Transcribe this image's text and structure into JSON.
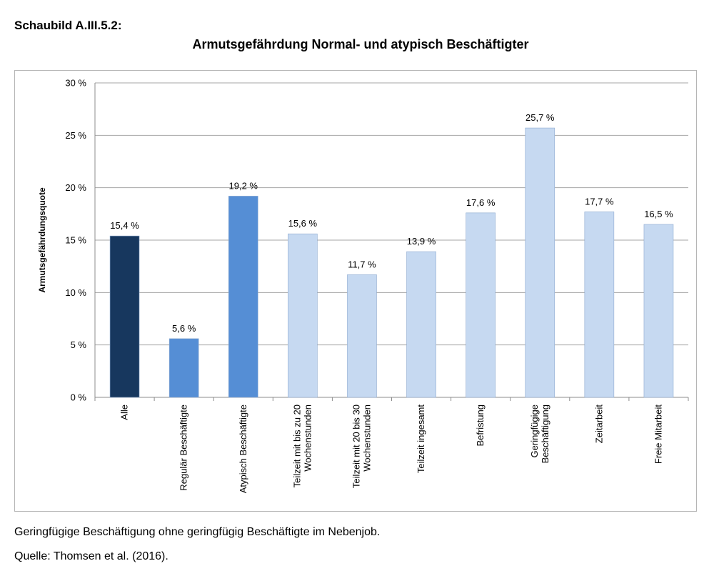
{
  "figure_label": "Schaubild A.III.5.2:",
  "footnote": "Geringfügige Beschäftigung ohne geringfügig Beschäftigte im Nebenjob.",
  "source": "Quelle: Thomsen et al. (2016).",
  "colors": {
    "dark": "#17375e",
    "medium": "#558ed5",
    "light": "#c6d9f1",
    "gridline": "#a6a6a6"
  },
  "chart_data": {
    "type": "bar",
    "title": "Armutsgefährdung Normal- und atypisch Beschäftigter",
    "xlabel": "",
    "ylabel": "Armutsgefährdungsquote",
    "ylim": [
      0,
      30
    ],
    "yticks": [
      0,
      5,
      10,
      15,
      20,
      25,
      30
    ],
    "ytick_labels": [
      "0 %",
      "5 %",
      "10 %",
      "15 %",
      "20 %",
      "25 %",
      "30 %"
    ],
    "grid": true,
    "categories": [
      [
        "Alle"
      ],
      [
        "Regulär Beschäftigte"
      ],
      [
        "Atypisch Beschäftigte"
      ],
      [
        "Teilzeit mit bis zu 20",
        "Wochenstunden"
      ],
      [
        "Teilzeit mit 20 bis 30",
        "Wochenstunden"
      ],
      [
        "Teilzeit ingesamt"
      ],
      [
        "Befristung"
      ],
      [
        "Geringfügige",
        "Beschäftigung"
      ],
      [
        "Zeitarbeit"
      ],
      [
        "Freie Mitarbeit"
      ]
    ],
    "values": [
      15.4,
      5.6,
      19.2,
      15.6,
      11.7,
      13.9,
      17.6,
      25.7,
      17.7,
      16.5
    ],
    "value_labels": [
      "15,4 %",
      "5,6 %",
      "19,2 %",
      "15,6 %",
      "11,7 %",
      "13,9 %",
      "17,6 %",
      "25,7 %",
      "17,7 %",
      "16,5 %"
    ],
    "bar_colors": [
      "dark",
      "medium",
      "medium",
      "light",
      "light",
      "light",
      "light",
      "light",
      "light",
      "light"
    ]
  }
}
